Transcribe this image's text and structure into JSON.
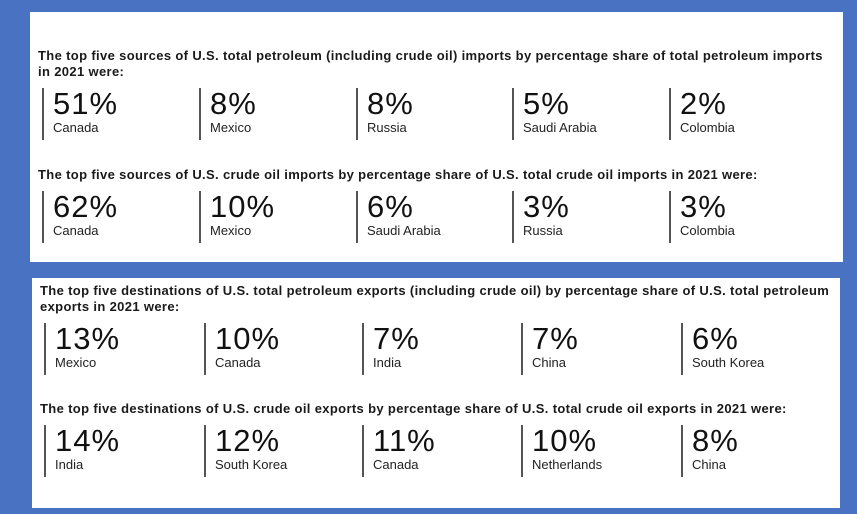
{
  "sections": [
    {
      "heading": "The top five sources of U.S. total petroleum (including crude oil) imports by percentage share of total petroleum imports in 2021 were:",
      "items": [
        {
          "value": "51%",
          "label": "Canada"
        },
        {
          "value": "8%",
          "label": "Mexico"
        },
        {
          "value": "8%",
          "label": "Russia"
        },
        {
          "value": "5%",
          "label": "Saudi Arabia"
        },
        {
          "value": "2%",
          "label": "Colombia"
        }
      ]
    },
    {
      "heading": "The top five sources of U.S. crude oil imports by percentage share of U.S. total crude oil imports in 2021 were:",
      "items": [
        {
          "value": "62%",
          "label": "Canada"
        },
        {
          "value": "10%",
          "label": "Mexico"
        },
        {
          "value": "6%",
          "label": "Saudi Arabia"
        },
        {
          "value": "3%",
          "label": "Russia"
        },
        {
          "value": "3%",
          "label": "Colombia"
        }
      ]
    },
    {
      "heading": "The top five destinations of U.S. total petroleum exports (including crude oil) by percentage share of U.S. total petroleum exports in 2021 were:",
      "items": [
        {
          "value": "13%",
          "label": "Mexico"
        },
        {
          "value": "10%",
          "label": "Canada"
        },
        {
          "value": "7%",
          "label": "India"
        },
        {
          "value": "7%",
          "label": "China"
        },
        {
          "value": "6%",
          "label": "South Korea"
        }
      ]
    },
    {
      "heading": "The top five destinations of U.S. crude oil exports by percentage share of U.S. total crude oil exports in 2021 were:",
      "items": [
        {
          "value": "14%",
          "label": "India"
        },
        {
          "value": "12%",
          "label": "South Korea"
        },
        {
          "value": "11%",
          "label": "Canada"
        },
        {
          "value": "10%",
          "label": "Netherlands"
        },
        {
          "value": "8%",
          "label": "China"
        }
      ]
    }
  ]
}
